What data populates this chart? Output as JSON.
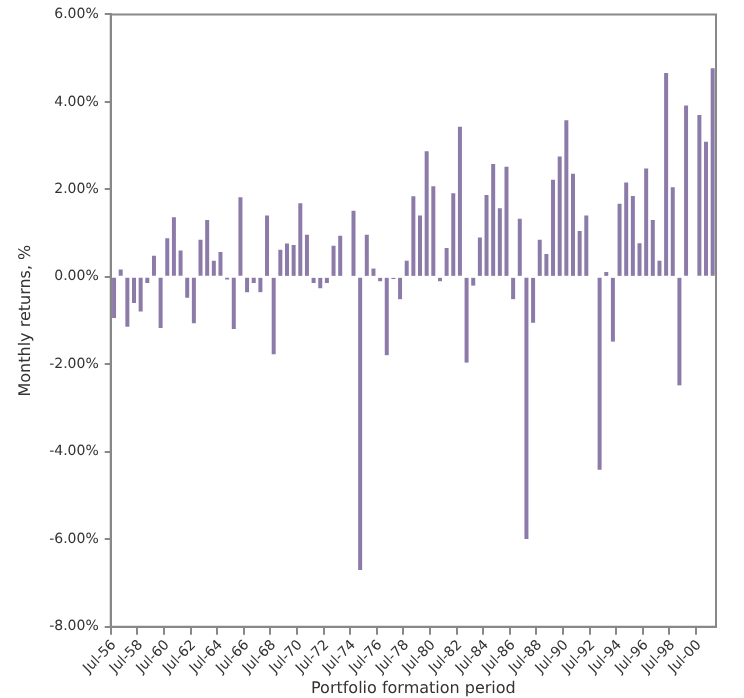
{
  "chart_data": {
    "type": "bar",
    "xlabel": "Portfolio formation period",
    "ylabel": "Monthly returns, %",
    "categories": [
      "Jul-56",
      null,
      null,
      null,
      "Jul-58",
      null,
      null,
      null,
      "Jul-60",
      null,
      null,
      null,
      "Jul-62",
      null,
      null,
      null,
      "Jul-64",
      null,
      null,
      null,
      "Jul-66",
      null,
      null,
      null,
      "Jul-68",
      null,
      null,
      null,
      "Jul-70",
      null,
      null,
      null,
      "Jul-72",
      null,
      null,
      null,
      "Jul-74",
      null,
      null,
      null,
      "Jul-76",
      null,
      null,
      null,
      "Jul-78",
      null,
      null,
      null,
      "Jul-80",
      null,
      null,
      null,
      "Jul-82",
      null,
      null,
      null,
      "Jul-84",
      null,
      null,
      null,
      "Jul-86",
      null,
      null,
      null,
      "Jul-88",
      null,
      null,
      null,
      "Jul-90",
      null,
      null,
      null,
      "Jul-92",
      null,
      null,
      null,
      "Jul-94",
      null,
      null,
      null,
      "Jul-96",
      null,
      null,
      null,
      "Jul-98",
      null,
      null,
      null,
      "Jul-00",
      null,
      null
    ],
    "values": [
      -0.94,
      0.17,
      -1.14,
      -0.6,
      -0.79,
      -0.14,
      0.48,
      -1.17,
      0.88,
      1.36,
      0.6,
      -0.48,
      -1.06,
      0.85,
      1.3,
      0.37,
      0.57,
      -0.06,
      -1.19,
      1.82,
      -0.35,
      -0.14,
      -0.35,
      1.4,
      -1.77,
      0.62,
      0.76,
      0.73,
      1.68,
      0.96,
      -0.14,
      -0.26,
      -0.14,
      0.71,
      0.94,
      0,
      1.51,
      -6.7,
      0.96,
      0.19,
      -0.1,
      -1.79,
      -0.05,
      -0.51,
      0.37,
      1.84,
      1.4,
      2.87,
      2.07,
      -0.1,
      0.66,
      1.91,
      3.43,
      -1.96,
      -0.2,
      0.9,
      1.87,
      2.58,
      1.57,
      2.52,
      -0.51,
      1.33,
      -5.99,
      -1.05,
      0.85,
      0.52,
      2.22,
      2.75,
      3.58,
      2.36,
      1.05,
      1.4,
      0,
      -4.41,
      0.11,
      -1.48,
      1.67,
      2.16,
      1.85,
      0.77,
      2.48,
      1.3,
      0.37,
      4.66,
      2.05,
      -2.48,
      3.92,
      0,
      3.7,
      3.09,
      4.77
    ],
    "color": "#8c7aa9",
    "ylim": [
      -8,
      6
    ],
    "yticks": [
      {
        "value": -8,
        "label": "-8.00%"
      },
      {
        "value": -6,
        "label": "-6.00%"
      },
      {
        "value": -4,
        "label": "-4.00%"
      },
      {
        "value": -2,
        "label": "-2.00%"
      },
      {
        "value": 0,
        "label": "0.00%"
      },
      {
        "value": 2,
        "label": "2.00%"
      },
      {
        "value": 4,
        "label": "4.00%"
      },
      {
        "value": 6,
        "label": "6.00%"
      }
    ],
    "grid": false,
    "legend": false
  }
}
